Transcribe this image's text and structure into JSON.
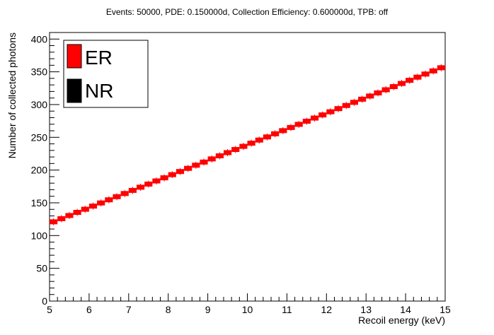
{
  "chart_data": {
    "type": "scatter",
    "title": "Events: 50000, PDE: 0.150000d, Collection Efficiency: 0.600000d, TPB: off",
    "xlabel": "Recoil energy (keV)",
    "ylabel": "Number of collected photons",
    "xlim": [
      5,
      15
    ],
    "ylim": [
      0,
      410
    ],
    "x_ticks": [
      "5",
      "6",
      "7",
      "8",
      "9",
      "10",
      "11",
      "12",
      "13",
      "14",
      "15"
    ],
    "y_ticks": [
      "0",
      "50",
      "100",
      "150",
      "200",
      "250",
      "300",
      "350",
      "400"
    ],
    "grid": false,
    "legend_position": "top-left",
    "series": [
      {
        "name": "ER",
        "color": "#ff0000",
        "style": "thick-segments",
        "x": [
          5.0,
          5.2,
          5.4,
          5.6,
          5.8,
          6.0,
          6.2,
          6.4,
          6.6,
          6.8,
          7.0,
          7.2,
          7.4,
          7.6,
          7.8,
          8.0,
          8.2,
          8.4,
          8.6,
          8.8,
          9.0,
          9.2,
          9.4,
          9.6,
          9.8,
          10.0,
          10.2,
          10.4,
          10.6,
          10.8,
          11.0,
          11.2,
          11.4,
          11.6,
          11.8,
          12.0,
          12.2,
          12.4,
          12.6,
          12.8,
          13.0,
          13.2,
          13.4,
          13.6,
          13.8,
          14.0,
          14.2,
          14.4,
          14.6,
          14.8
        ],
        "y": [
          121.0,
          125.8,
          130.6,
          135.4,
          140.2,
          145.0,
          149.8,
          154.6,
          159.4,
          164.2,
          169.0,
          173.8,
          178.6,
          183.4,
          188.2,
          193.0,
          197.8,
          202.6,
          207.4,
          212.2,
          217.0,
          221.8,
          226.6,
          231.4,
          236.2,
          241.0,
          245.8,
          250.6,
          255.4,
          260.2,
          265.0,
          269.8,
          274.6,
          279.4,
          284.2,
          289.0,
          293.8,
          298.6,
          303.4,
          308.2,
          313.0,
          317.8,
          322.6,
          327.4,
          332.2,
          337.0,
          341.8,
          346.6,
          351.4,
          356.2
        ]
      },
      {
        "name": "NR",
        "color": "#000000",
        "style": "thick-segments",
        "x": [],
        "y": []
      }
    ]
  }
}
